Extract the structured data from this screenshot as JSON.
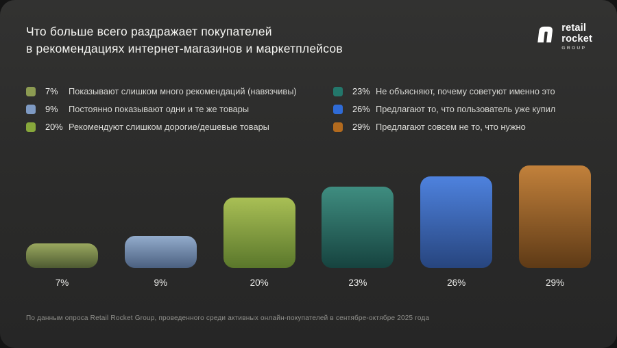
{
  "header": {
    "title_line1": "Что больше всего раздражает покупателей",
    "title_line2": "в рекомендациях интернет-магазинов и маркетплейсов",
    "logo": {
      "word1": "retail",
      "word2": "rocket",
      "word3": "GROUP"
    }
  },
  "chart_data": {
    "type": "bar",
    "title": "Что больше всего раздражает покупателей в рекомендациях интернет-магазинов и маркетплейсов",
    "categories": [
      "7%",
      "9%",
      "20%",
      "23%",
      "26%",
      "29%"
    ],
    "values": [
      7,
      9,
      20,
      23,
      26,
      29
    ],
    "ylim": [
      0,
      29
    ],
    "grid": false,
    "legend_position": "top",
    "bar_colors": [
      {
        "top": "#9aa85f",
        "bottom": "#4e5b32"
      },
      {
        "top": "#93accc",
        "bottom": "#4b6080"
      },
      {
        "top": "#a9bf55",
        "bottom": "#5a772b"
      },
      {
        "top": "#3f8d80",
        "bottom": "#16433f"
      },
      {
        "top": "#4e82de",
        "bottom": "#27457e"
      },
      {
        "top": "#c2813b",
        "bottom": "#5e3a16"
      }
    ],
    "legend": [
      {
        "pct": "7%",
        "label": "Показывают слишком много рекомендаций (навязчивы)",
        "color": "#8c9b52"
      },
      {
        "pct": "9%",
        "label": "Постоянно показывают одни и те же товары",
        "color": "#7e9ac3"
      },
      {
        "pct": "20%",
        "label": "Рекомендуют слишком дорогие/дешевые товары",
        "color": "#87a73b"
      },
      {
        "pct": "23%",
        "label": "Не объясняют, почему советуют именно это",
        "color": "#23776b"
      },
      {
        "pct": "26%",
        "label": "Предлагают то, что пользователь уже купил",
        "color": "#2f6bd6"
      },
      {
        "pct": "29%",
        "label": "Предлагают совсем не то, что нужно",
        "color": "#b26a1e"
      }
    ]
  },
  "footer": {
    "note": "По данным опроса Retail Rocket Group, проведенного среди активных онлайн-покупателей в сентябре-октябре 2025 года"
  }
}
